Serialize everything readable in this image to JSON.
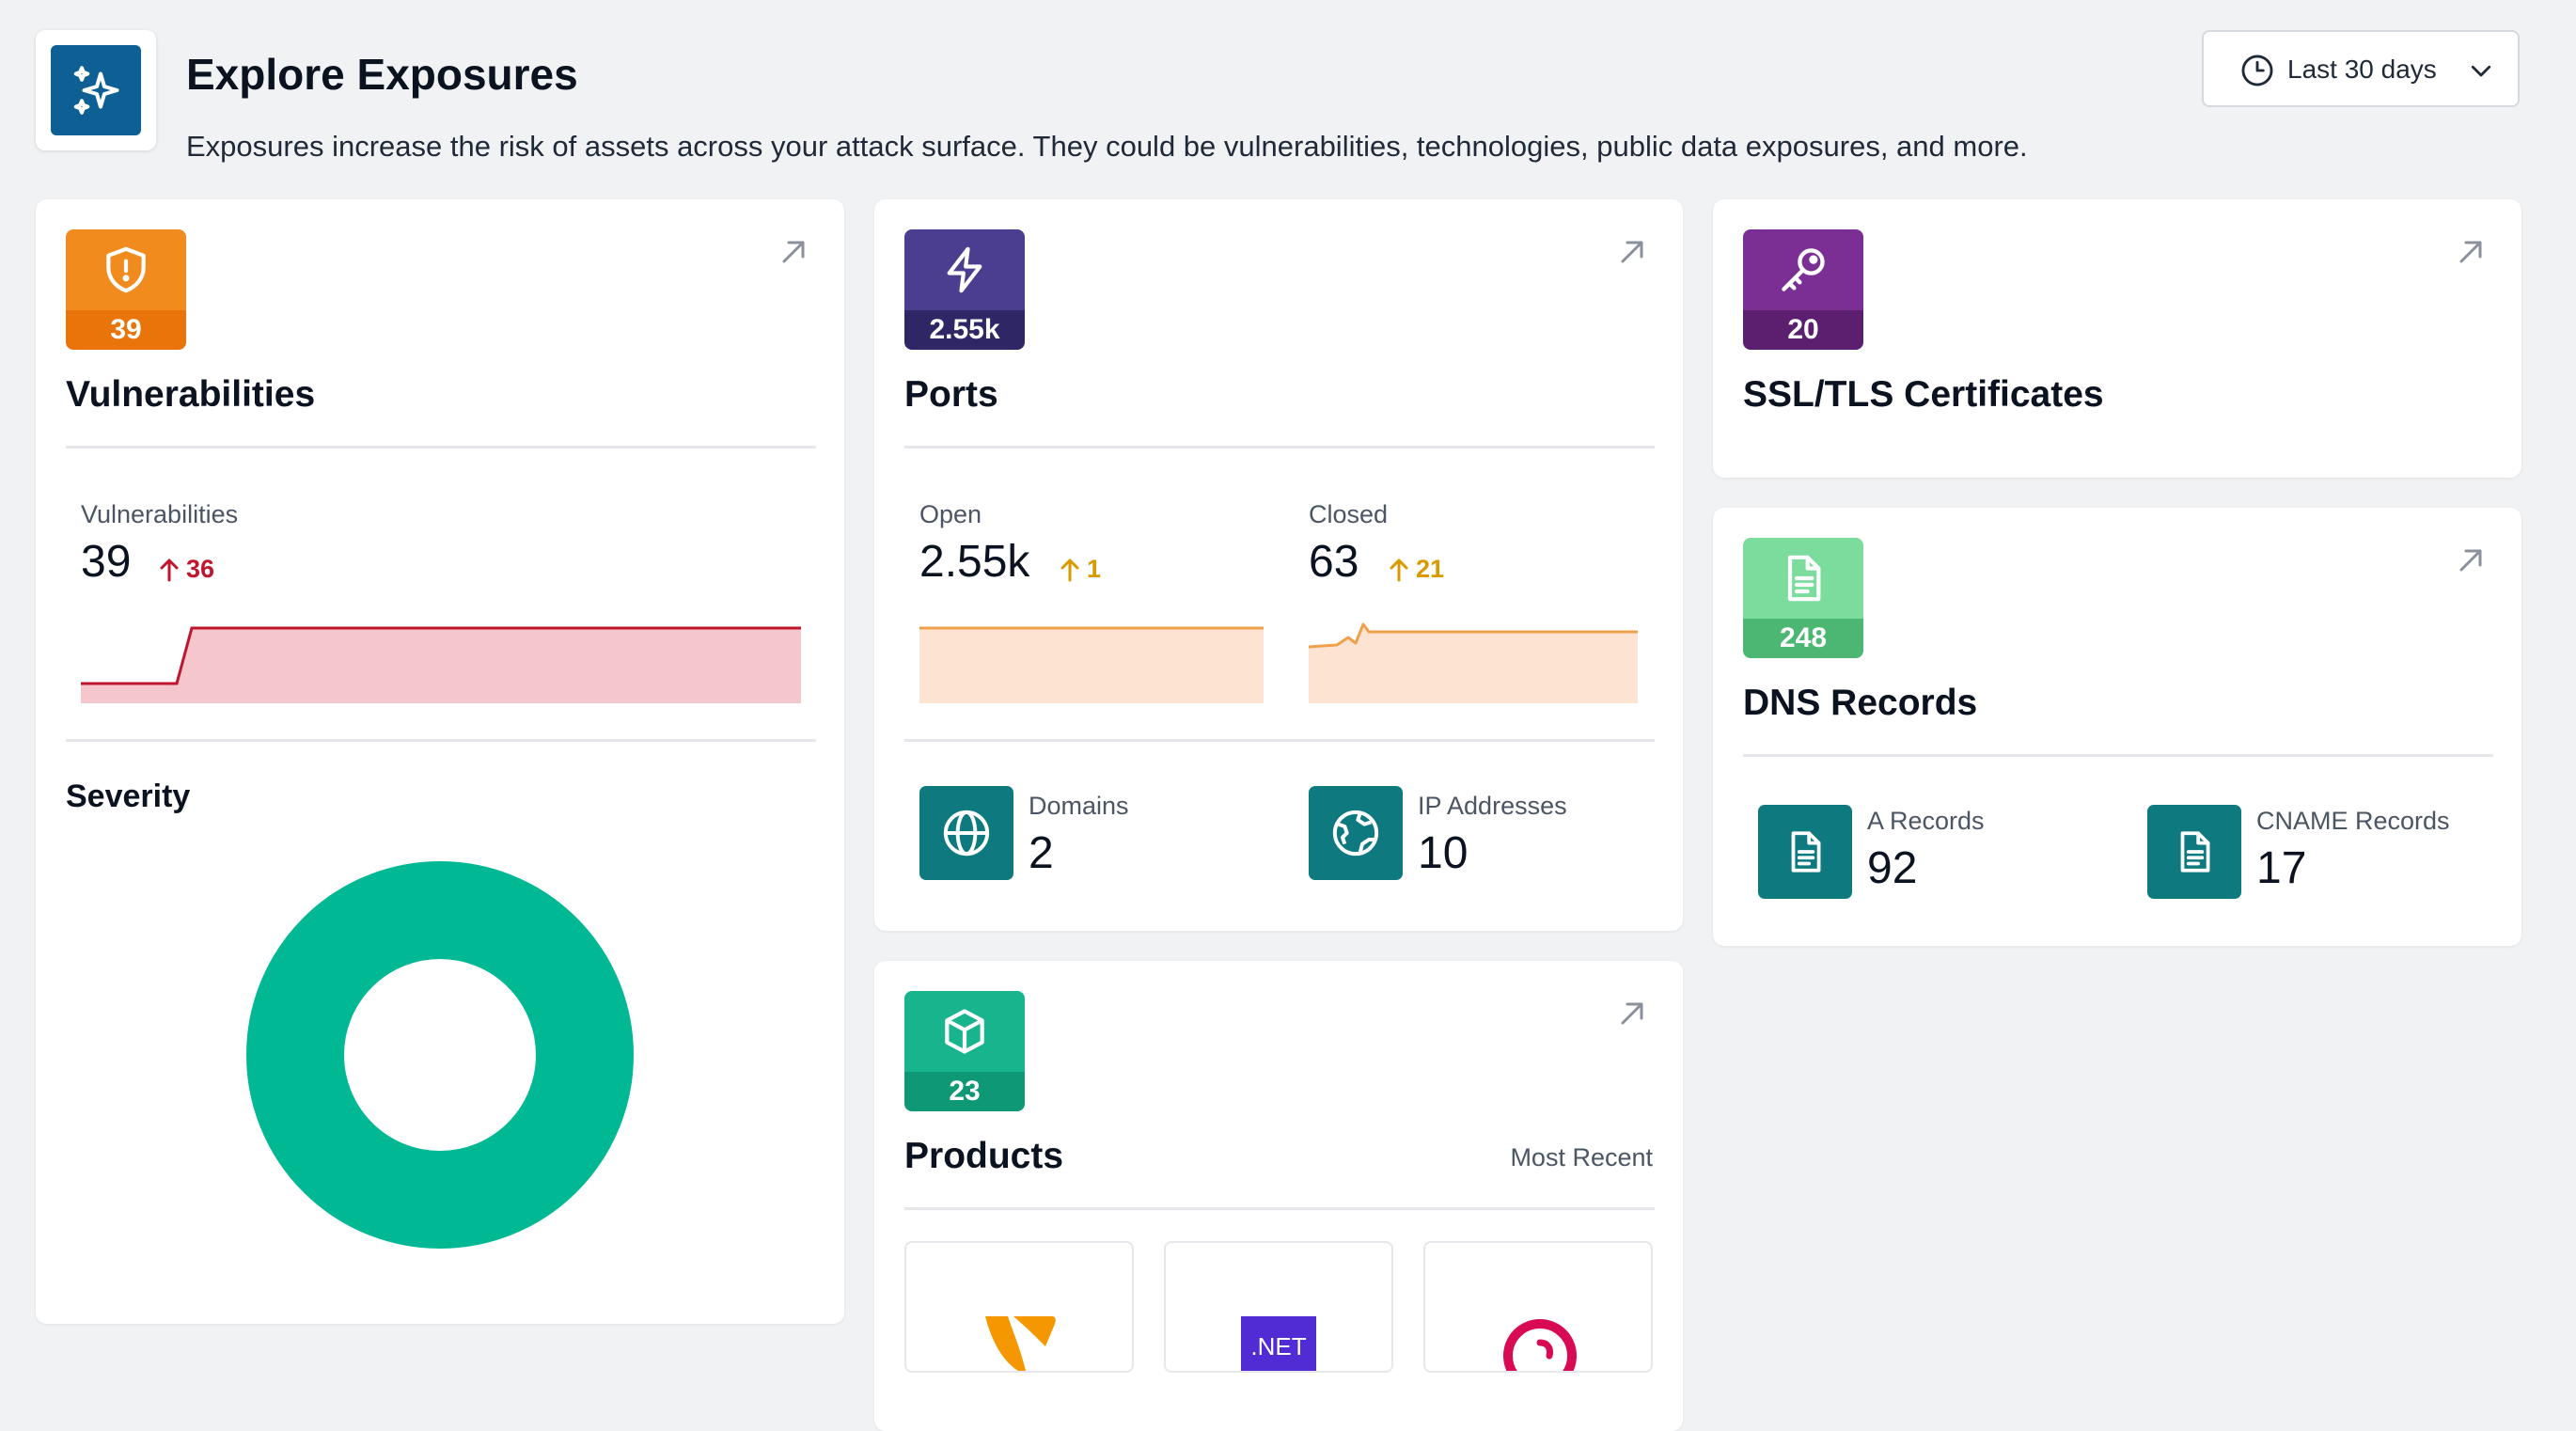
{
  "header": {
    "title": "Explore Exposures",
    "subtitle": "Exposures increase the risk of assets across your attack surface. They could be vulnerabilities, technologies, public data exposures, and more.",
    "date_range": "Last 30 days"
  },
  "colors": {
    "header_icon": "#0e5f94",
    "vulnerabilities": "#f28b1e",
    "ports": "#4b3d8f",
    "certificates": "#7b2f94",
    "dns": "#5fcf8c",
    "products": "#17b48e",
    "severity_ring": "#00b894",
    "delta_red": "#c0152f",
    "delta_amber": "#d99a00",
    "tile_teal": "#0e7a7f"
  },
  "vulnerabilities": {
    "badge_count": "39",
    "title": "Vulnerabilities",
    "stat_label": "Vulnerabilities",
    "stat_value": "39",
    "delta": "36",
    "severity_title": "Severity"
  },
  "ports": {
    "badge_count": "2.55k",
    "title": "Ports",
    "open_label": "Open",
    "open_value": "2.55k",
    "open_delta": "1",
    "closed_label": "Closed",
    "closed_value": "63",
    "closed_delta": "21",
    "domains_label": "Domains",
    "domains_value": "2",
    "ips_label": "IP Addresses",
    "ips_value": "10"
  },
  "certificates": {
    "badge_count": "20",
    "title": "SSL/TLS Certificates"
  },
  "dns": {
    "badge_count": "248",
    "title": "DNS Records",
    "a_label": "A Records",
    "a_value": "92",
    "cname_label": "CNAME Records",
    "cname_value": "17"
  },
  "products": {
    "badge_count": "23",
    "title": "Products",
    "sort_label": "Most Recent",
    "items": [
      {
        "icon": "typo3-logo"
      },
      {
        "icon": "dotnet-logo",
        "label": ".NET"
      },
      {
        "icon": "debian-logo"
      }
    ]
  }
}
